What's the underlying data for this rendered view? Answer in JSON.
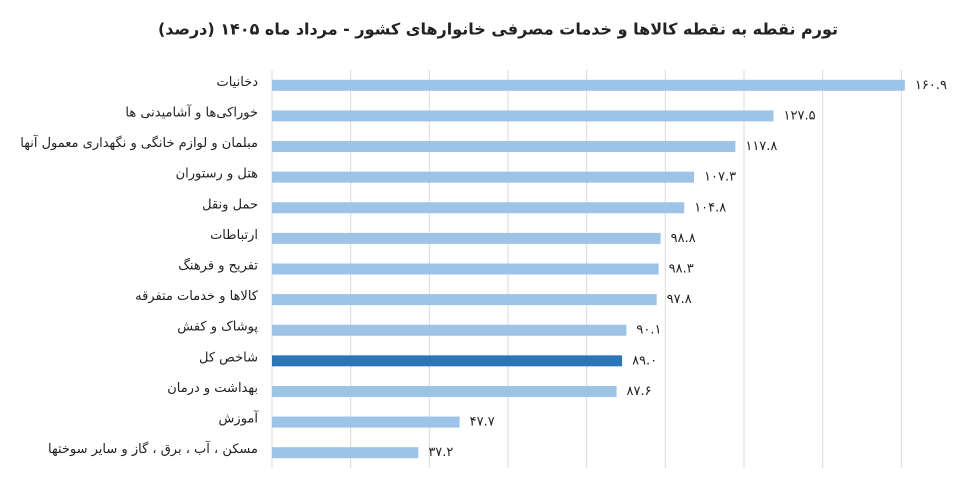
{
  "chart_data": {
    "type": "hbar",
    "title": "تورم نقطه به نقطه کالاها و خدمات مصرفی خانوارهای کشور - مرداد ماه ۱۴۰۵ (درصد)",
    "categories": [
      "دخانیات",
      "خوراکی‌ها و آشامیدنی ها",
      "مبلمان و لوازم خانگی و نگهداری معمول آنها",
      "هتل و رستوران",
      "حمل ونقل",
      "ارتباطات",
      "تفریح و فرهنگ",
      "کالاها و خدمات متفرقه",
      "پوشاک و کفش",
      "شاخص کل",
      "بهداشت و درمان",
      "آموزش",
      "مسکن ، آب ، برق ، گاز و سایر سوختها"
    ],
    "values": [
      160.9,
      127.5,
      117.8,
      107.3,
      104.8,
      98.8,
      98.3,
      97.8,
      90.1,
      89.0,
      87.6,
      47.7,
      37.2
    ],
    "value_labels": [
      "۱۶۰.۹",
      "۱۲۷.۵",
      "۱۱۷.۸",
      "۱۰۷.۳",
      "۱۰۴.۸",
      "۹۸.۸",
      "۹۸.۳",
      "۹۷.۸",
      "۹۰.۱",
      "۸۹.۰",
      "۸۷.۶",
      "۴۷.۷",
      "۳۷.۲"
    ],
    "colors": [
      "#9dc3e6",
      "#9dc3e6",
      "#9dc3e6",
      "#9dc3e6",
      "#9dc3e6",
      "#9dc3e6",
      "#9dc3e6",
      "#9dc3e6",
      "#9dc3e6",
      "#2e75b6",
      "#9dc3e6",
      "#9dc3e6",
      "#9dc3e6"
    ],
    "xlim": [
      0,
      165
    ],
    "xticks": [
      0,
      20,
      40,
      60,
      80,
      100,
      120,
      140,
      160
    ],
    "grid": true
  }
}
